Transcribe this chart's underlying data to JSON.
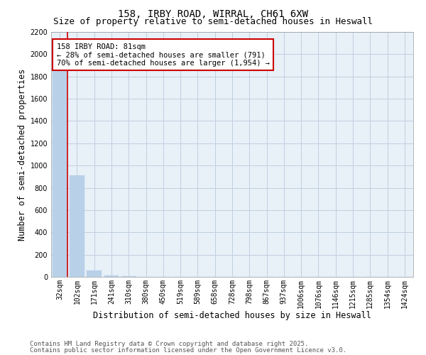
{
  "title_line1": "158, IRBY ROAD, WIRRAL, CH61 6XW",
  "title_line2": "Size of property relative to semi-detached houses in Heswall",
  "xlabel": "Distribution of semi-detached houses by size in Heswall",
  "ylabel": "Number of semi-detached properties",
  "footer_line1": "Contains HM Land Registry data © Crown copyright and database right 2025.",
  "footer_line2": "Contains public sector information licensed under the Open Government Licence v3.0.",
  "annotation_line1": "158 IRBY ROAD: 81sqm",
  "annotation_line2": "← 28% of semi-detached houses are smaller (791)",
  "annotation_line3": "70% of semi-detached houses are larger (1,954) →",
  "property_size": 81,
  "bin_labels": [
    "32sqm",
    "102sqm",
    "171sqm",
    "241sqm",
    "310sqm",
    "380sqm",
    "450sqm",
    "519sqm",
    "589sqm",
    "658sqm",
    "728sqm",
    "798sqm",
    "867sqm",
    "937sqm",
    "1006sqm",
    "1076sqm",
    "1146sqm",
    "1215sqm",
    "1285sqm",
    "1354sqm",
    "1424sqm"
  ],
  "counts": [
    1900,
    910,
    55,
    15,
    5,
    3,
    2,
    1,
    1,
    0,
    0,
    0,
    0,
    0,
    0,
    0,
    0,
    0,
    0,
    0,
    0
  ],
  "bar_color": "#b8d0e8",
  "red_line_color": "#cc0000",
  "annotation_box_color": "#cc0000",
  "grid_color": "#c0d0e0",
  "bg_color": "#e8f0f8",
  "ylim": [
    0,
    2200
  ],
  "yticks": [
    0,
    200,
    400,
    600,
    800,
    1000,
    1200,
    1400,
    1600,
    1800,
    2000,
    2200
  ],
  "title_fontsize": 10,
  "subtitle_fontsize": 9,
  "axis_label_fontsize": 8.5,
  "tick_fontsize": 7,
  "footer_fontsize": 6.5,
  "annotation_fontsize": 7.5
}
